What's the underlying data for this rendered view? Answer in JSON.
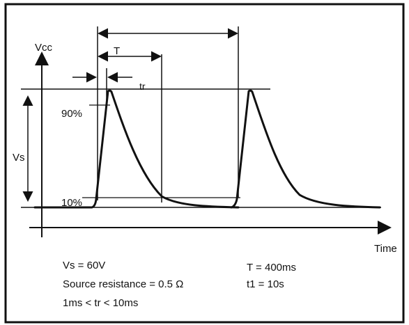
{
  "axes": {
    "y_label": "Vcc",
    "x_label": "Time"
  },
  "markers": {
    "vs": "Vs",
    "pct_90": "90%",
    "pct_10": "10%",
    "T": "T",
    "tr": "tr"
  },
  "notes": {
    "vs_value": "Vs = 60V",
    "source_resistance": "Source resistance = 0.5 Ω",
    "tr_range": "1ms < tr < 10ms",
    "T_value": "T = 400ms",
    "t1_value": "t1 = 10s"
  },
  "colors": {
    "line": "#111111",
    "background": "#ffffff"
  }
}
